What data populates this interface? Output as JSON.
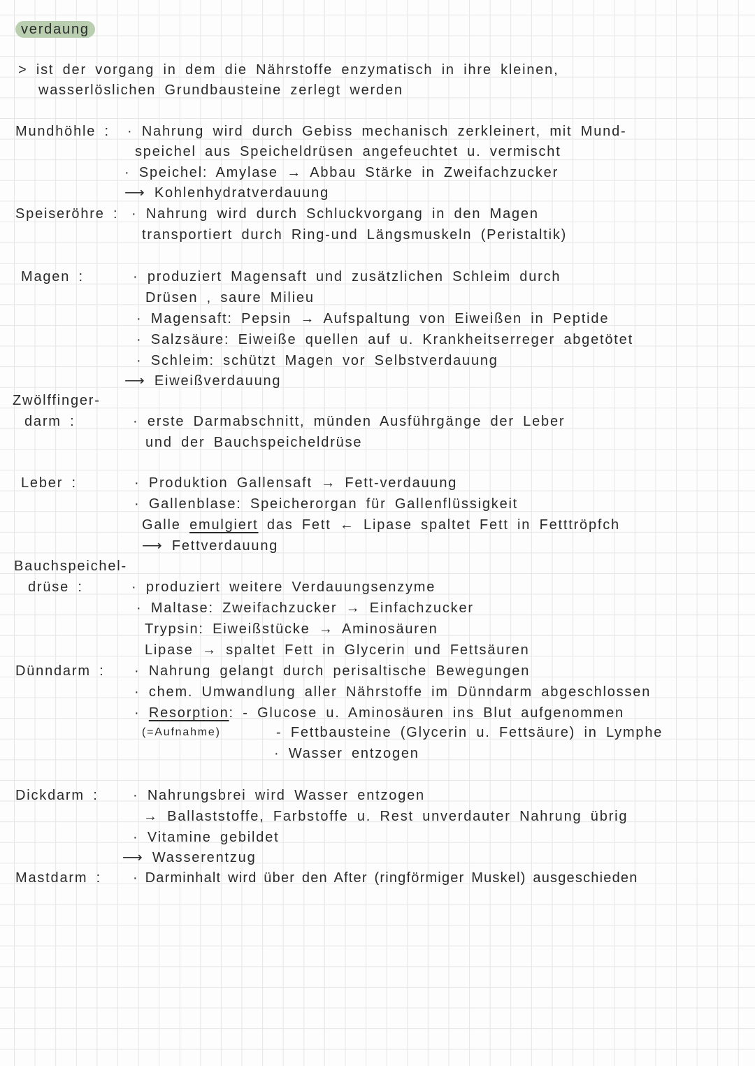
{
  "title": "verdaung",
  "intro": [
    "> ist der vorgang in dem die Nährstoffe enzymatisch in ihre kleinen,",
    "wasserlöslichen Grundbausteine zerlegt werden"
  ],
  "mundhoehle": {
    "label": "Mundhöhle :",
    "lines": [
      "· Nahrung wird durch Gebiss mechanisch zerkleinert, mit Mund-",
      "speichel aus Speicheldrüsen angefeuchtet u. vermischt",
      "· Speichel: Amylase → Abbau Stärke in Zweifachzucker",
      "⟶ Kohlenhydratverdauung"
    ]
  },
  "speiseroehre": {
    "label": "Speiseröhre :",
    "lines": [
      "· Nahrung wird durch Schluckvorgang in den Magen",
      "transportiert durch Ring-und Längsmuskeln (Peristaltik)"
    ]
  },
  "magen": {
    "label": "Magen   :",
    "lines": [
      "· produziert Magensaft und zusätzlichen Schleim durch",
      "Drüsen , saure Milieu",
      "· Magensaft: Pepsin → Aufspaltung von Eiweißen in Peptide",
      "· Salzsäure: Eiweiße quellen auf u. Krankheitserreger abgetötet",
      "· Schleim: schützt Magen vor Selbstverdauung",
      "⟶ Eiweißverdauung"
    ]
  },
  "zwoelffingerdarm": {
    "label1": "Zwölffinger-",
    "label2": "darm   :",
    "lines": [
      "· erste Darmabschnitt, münden Ausführgänge der Leber",
      "und der Bauchspeicheldrüse"
    ]
  },
  "leber": {
    "label": "Leber   :",
    "lines": [
      "· Produktion Gallensaft → Fett-verdauung",
      "· Gallenblase: Speicherorgan für Gallenflüssigkeit",
      "Galle",
      "emulgiert",
      "das Fett ← Lipase spaltet Fett in Fetttröpfch",
      "⟶ Fettverdauung"
    ]
  },
  "bauchspeicheldruese": {
    "label1": "Bauchspeichel-",
    "label2": "drüse  :",
    "lines": [
      "· produziert weitere Verdauungsenzyme",
      "· Maltase: Zweifachzucker → Einfachzucker",
      "Trypsin: Eiweißstücke → Aminosäuren",
      "Lipase → spaltet Fett in Glycerin und Fettsäuren"
    ]
  },
  "duenndarm": {
    "label": "Dünndarm :",
    "lines": [
      "· Nahrung gelangt durch perisaltische Bewegungen",
      "· chem. Umwandlung aller Nährstoffe im Dünndarm abgeschlossen",
      "· ",
      "Resorption",
      ": - Glucose u. Aminosäuren ins Blut aufgenommen",
      "(=Aufnahme)",
      "- Fettbausteine (Glycerin u. Fettsäure) in Lymphe",
      "· Wasser entzogen"
    ]
  },
  "dickdarm": {
    "label": "Dickdarm :",
    "lines": [
      "· Nahrungsbrei wird Wasser entzogen",
      "→ Ballaststoffe, Farbstoffe u. Rest unverdauter Nahrung übrig",
      "· Vitamine gebildet",
      "⟶ Wasserentzug"
    ]
  },
  "mastdarm": {
    "label": "Mastdarm :",
    "lines": [
      "· Darminhalt wird über den After (ringförmiger Muskel) ausgeschieden"
    ]
  }
}
